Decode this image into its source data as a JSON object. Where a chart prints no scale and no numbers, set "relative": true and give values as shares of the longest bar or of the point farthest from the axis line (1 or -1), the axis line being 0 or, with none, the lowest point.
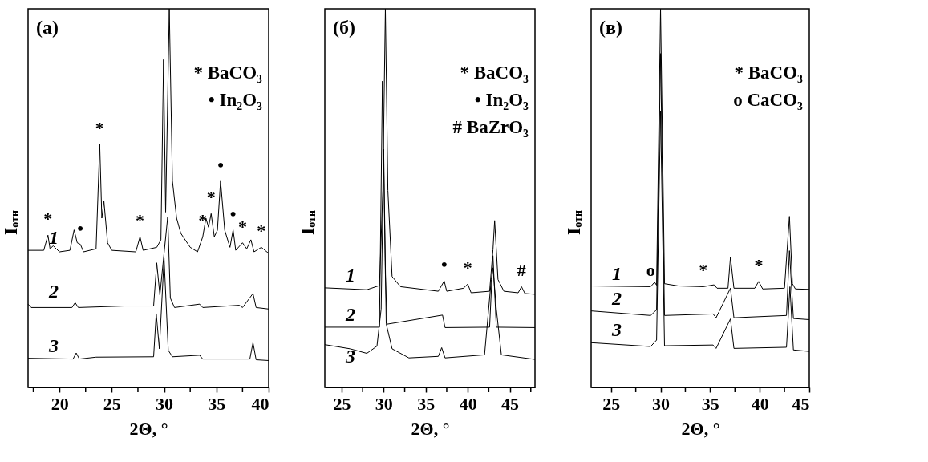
{
  "chart_data": [
    {
      "type": "line",
      "title": "(а)",
      "xlabel": "2Θ, °",
      "ylabel": "I$_{отн}$",
      "relative": true,
      "xlim": [
        17,
        40
      ],
      "xticks": [
        {
          "value": 17.5,
          "label": null
        },
        20,
        {
          "value": 22.5,
          "label": null
        },
        25,
        {
          "value": 27.5,
          "label": null
        },
        30,
        {
          "value": 32.5,
          "label": null
        },
        35,
        {
          "value": 37.5,
          "label": null
        },
        40
      ],
      "series": [
        {
          "name": "1",
          "color": "#000000",
          "x": [
            17,
            18.5,
            18.9,
            19.1,
            19.4,
            20,
            21,
            21.4,
            21.7,
            22,
            22.3,
            23.5,
            23.85,
            24.05,
            24.25,
            24.6,
            25,
            27.3,
            27.7,
            28,
            29.3,
            29.7,
            29.95,
            30.15,
            30.5,
            30.8,
            31.2,
            31.6,
            32.5,
            33.2,
            33.7,
            34,
            34.25,
            34.5,
            34.8,
            35.1,
            35.4,
            35.8,
            36.3,
            36.6,
            36.85,
            37.5,
            37.9,
            38.3,
            38.6,
            39.3,
            40
          ],
          "values": [
            0.362,
            0.362,
            0.402,
            0.366,
            0.374,
            0.358,
            0.362,
            0.416,
            0.382,
            0.378,
            0.358,
            0.366,
            0.642,
            0.447,
            0.492,
            0.382,
            0.362,
            0.358,
            0.398,
            0.362,
            0.37,
            0.39,
            0.866,
            0.463,
            1,
            0.545,
            0.447,
            0.407,
            0.37,
            0.358,
            0.398,
            0.447,
            0.423,
            0.459,
            0.398,
            0.415,
            0.545,
            0.415,
            0.37,
            0.416,
            0.362,
            0.382,
            0.366,
            0.39,
            0.358,
            0.37,
            0.354
          ]
        },
        {
          "name": "2",
          "color": "#000000",
          "x": [
            17,
            17.3,
            21.2,
            21.5,
            21.8,
            26.2,
            29,
            29.3,
            29.6,
            30.35,
            30.6,
            31,
            33.4,
            33.7,
            37.2,
            37.5,
            38.5,
            38.8,
            40
          ],
          "values": [
            0.22,
            0.211,
            0.211,
            0.224,
            0.211,
            0.215,
            0.215,
            0.329,
            0.244,
            0.451,
            0.236,
            0.211,
            0.22,
            0.211,
            0.217,
            0.211,
            0.248,
            0.211,
            0.207
          ]
        },
        {
          "name": "3",
          "color": "#000000",
          "x": [
            17,
            21.3,
            21.6,
            21.9,
            23.5,
            29,
            29.25,
            29.55,
            30,
            30.4,
            30.8,
            33.4,
            33.7,
            38.2,
            38.5,
            38.8,
            40
          ],
          "values": [
            0.077,
            0.075,
            0.091,
            0.075,
            0.08,
            0.081,
            0.195,
            0.102,
            0.341,
            0.098,
            0.081,
            0.085,
            0.075,
            0.075,
            0.118,
            0.073,
            0.071
          ]
        }
      ],
      "annotations": [
        "* BaCO₃",
        "• In₂O₃",
        {
          "text": "*",
          "x": 18.9,
          "y": 0.402
        },
        {
          "text": "•",
          "x": 22,
          "y": 0.378
        },
        {
          "text": "*",
          "x": 23.85,
          "y": 0.642
        },
        {
          "text": "*",
          "x": 27.7,
          "y": 0.398
        },
        {
          "text": "*",
          "x": 33.7,
          "y": 0.398
        },
        {
          "text": "*",
          "x": 34.5,
          "y": 0.459
        },
        {
          "text": "•",
          "x": 35.4,
          "y": 0.545
        },
        {
          "text": "•",
          "x": 36.6,
          "y": 0.416
        },
        {
          "text": "*",
          "x": 37.5,
          "y": 0.382
        },
        {
          "text": "*",
          "x": 39.3,
          "y": 0.37
        }
      ]
    },
    {
      "type": "line",
      "title": "(б)",
      "xlabel": "2Θ, °",
      "ylabel": "I$_{отн}$",
      "relative": true,
      "xlim": [
        23,
        48
      ],
      "xticks": [
        25,
        {
          "value": 27.5,
          "label": null
        },
        30,
        {
          "value": 32.5,
          "label": null
        },
        35,
        {
          "value": 37.5,
          "label": null
        },
        40,
        {
          "value": 42.5,
          "label": null
        },
        45,
        {
          "value": 47.5,
          "label": null
        }
      ],
      "series": [
        {
          "name": "1",
          "color": "#000000",
          "x": [
            23,
            28,
            29.5,
            29.9,
            30.2,
            30.5,
            31,
            32,
            36.5,
            37.2,
            37.5,
            39.5,
            40,
            40.4,
            42.6,
            43,
            43.2,
            43.6,
            44.3,
            46,
            46.4,
            46.8,
            48
          ],
          "values": [
            0.263,
            0.258,
            0.269,
            0.52,
            1,
            0.52,
            0.293,
            0.266,
            0.254,
            0.281,
            0.254,
            0.262,
            0.273,
            0.25,
            0.254,
            0.363,
            0.441,
            0.285,
            0.254,
            0.25,
            0.266,
            0.248,
            0.246
          ]
        },
        {
          "name": "2",
          "color": "#000000",
          "x": [
            23,
            29.5,
            29.85,
            30.2,
            30.4,
            37,
            37.3,
            42.6,
            43,
            43.4,
            48
          ],
          "values": [
            0.159,
            0.159,
            0.809,
            0.3,
            0.167,
            0.191,
            0.158,
            0.159,
            0.348,
            0.159,
            0.158
          ]
        },
        {
          "name": "3",
          "color": "#000000",
          "x": [
            23,
            26,
            28,
            29.2,
            29.7,
            30,
            30.3,
            31,
            33,
            36.5,
            36.9,
            37.3,
            42,
            42.8,
            43,
            43.4,
            44,
            48
          ],
          "values": [
            0.113,
            0.102,
            0.09,
            0.109,
            0.207,
            0.629,
            0.168,
            0.102,
            0.078,
            0.082,
            0.105,
            0.078,
            0.086,
            0.285,
            0.316,
            0.207,
            0.086,
            0.074
          ]
        }
      ],
      "annotations": [
        "* BaCO₃",
        "• In₂O₃",
        "# BaZrO₃",
        {
          "text": "•",
          "x": 37.2,
          "y": 0.281
        },
        {
          "text": "*",
          "x": 40,
          "y": 0.273
        },
        {
          "text": "#",
          "x": 46.4,
          "y": 0.266
        }
      ]
    },
    {
      "type": "line",
      "title": "(в)",
      "xlabel": "2Θ, °",
      "ylabel": "I$_{отн}$",
      "relative": true,
      "xlim": [
        23,
        45
      ],
      "xticks": [
        25,
        {
          "value": 27.5,
          "label": null
        },
        30,
        {
          "value": 32.5,
          "label": null
        },
        35,
        {
          "value": 37.5,
          "label": null
        },
        40,
        {
          "value": 42.5,
          "label": null
        },
        45
      ],
      "series": [
        {
          "name": "1",
          "color": "#000000",
          "x": [
            23,
            29,
            29.4,
            29.6,
            30,
            30.4,
            31.8,
            34.3,
            35.4,
            35.7,
            36.8,
            37.05,
            37.4,
            39.5,
            39.9,
            40.3,
            42.5,
            43,
            43.3,
            43.6,
            45
          ],
          "values": [
            0.268,
            0.266,
            0.278,
            0.27,
            1,
            0.274,
            0.268,
            0.266,
            0.271,
            0.262,
            0.262,
            0.344,
            0.262,
            0.262,
            0.28,
            0.26,
            0.262,
            0.452,
            0.274,
            0.26,
            0.259
          ]
        },
        {
          "name": "2",
          "color": "#000000",
          "x": [
            23,
            29,
            29.6,
            30,
            30.4,
            35.3,
            35.6,
            37.05,
            37.4,
            42.7,
            43,
            43.4,
            45
          ],
          "values": [
            0.202,
            0.19,
            0.205,
            0.882,
            0.19,
            0.194,
            0.184,
            0.262,
            0.184,
            0.19,
            0.361,
            0.182,
            0.179
          ]
        },
        {
          "name": "3",
          "color": "#000000",
          "x": [
            23,
            29,
            29.6,
            30,
            30.4,
            35.3,
            35.6,
            37.05,
            37.4,
            42.7,
            43.05,
            43.4,
            45
          ],
          "values": [
            0.118,
            0.108,
            0.125,
            0.73,
            0.11,
            0.112,
            0.103,
            0.181,
            0.103,
            0.106,
            0.266,
            0.099,
            0.095
          ]
        }
      ],
      "annotations": [
        "* BaCO₃",
        "o CaCO₃",
        {
          "text": "o",
          "x": 29,
          "y": 0.266
        },
        {
          "text": "*",
          "x": 34.3,
          "y": 0.266
        },
        {
          "text": "*",
          "x": 39.9,
          "y": 0.28
        }
      ]
    }
  ]
}
